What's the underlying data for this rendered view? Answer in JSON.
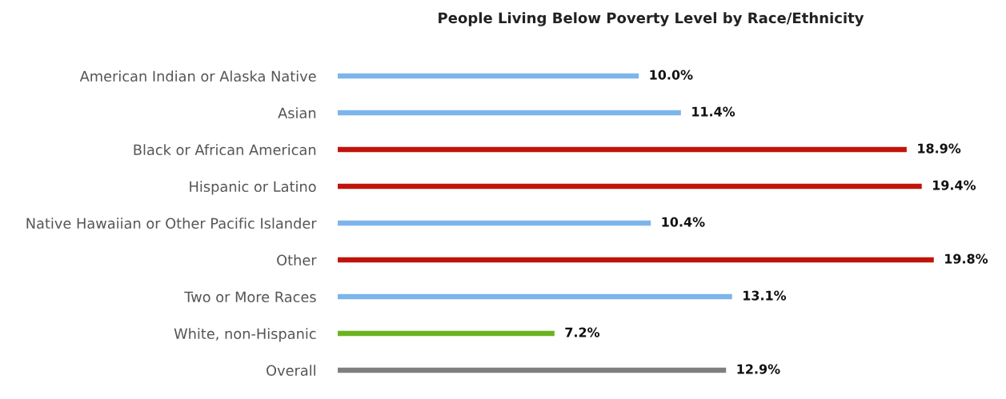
{
  "chart_data": {
    "type": "bar",
    "orientation": "horizontal",
    "title": "People Living Below Poverty Level by Race/Ethnicity",
    "categories": [
      "American Indian or Alaska Native",
      "Asian",
      "Black or African American",
      "Hispanic or Latino",
      "Native Hawaiian or Other Pacific Islander",
      "Other",
      "Two or More Races",
      "White, non-Hispanic",
      "Overall"
    ],
    "values": [
      10.0,
      11.4,
      18.9,
      19.4,
      10.4,
      19.8,
      13.1,
      7.2,
      12.9
    ],
    "colors": [
      "#7cb5ec",
      "#7cb5ec",
      "#c0140a",
      "#c0140a",
      "#7cb5ec",
      "#c0140a",
      "#7cb5ec",
      "#6ab41e",
      "#7f7f7f"
    ],
    "value_labels": [
      "10.0%",
      "11.4%",
      "18.9%",
      "19.4%",
      "10.4%",
      "19.8%",
      "13.1%",
      "7.2%",
      "12.9%"
    ],
    "tick_labels": "y",
    "grid": false
  }
}
